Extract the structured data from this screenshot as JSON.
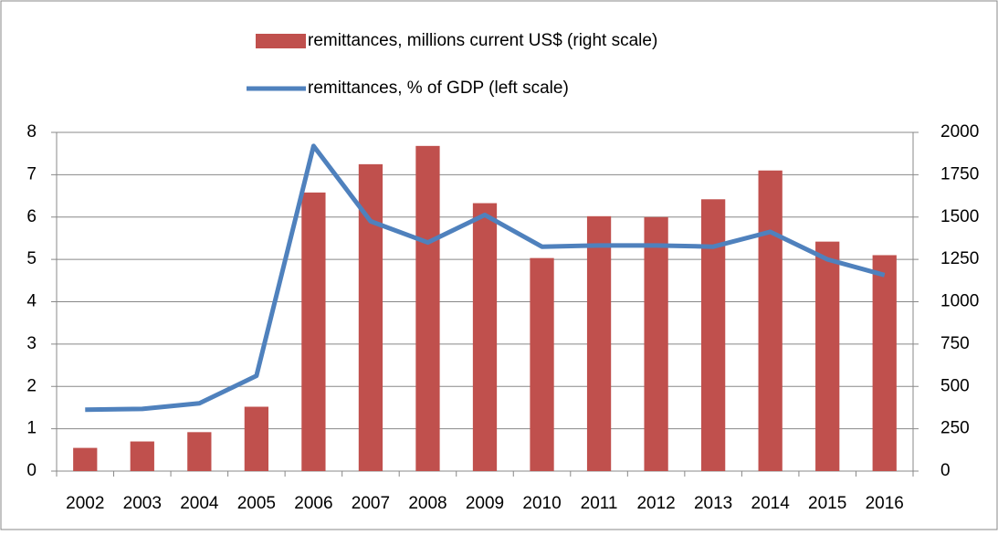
{
  "chart_data": {
    "type": "combo",
    "categories": [
      "2002",
      "2003",
      "2004",
      "2005",
      "2006",
      "2007",
      "2008",
      "2009",
      "2010",
      "2011",
      "2012",
      "2013",
      "2014",
      "2015",
      "2016"
    ],
    "series": [
      {
        "name": "remittances, millions current US$ (right scale)",
        "type": "bar",
        "axis": "y2",
        "color": "#c0504d",
        "values": [
          137,
          175,
          230,
          380,
          1645,
          1812,
          1920,
          1582,
          1258,
          1505,
          1500,
          1605,
          1775,
          1355,
          1275
        ]
      },
      {
        "name": "remittances, % of GDP (left scale)",
        "type": "line",
        "color": "#4f81bd",
        "values": [
          1.45,
          1.47,
          1.6,
          2.25,
          7.68,
          5.9,
          5.4,
          6.05,
          5.3,
          5.33,
          5.33,
          5.3,
          5.65,
          5.0,
          4.63
        ]
      }
    ],
    "ylim": [
      0,
      8
    ],
    "yticks": [
      0,
      1,
      2,
      3,
      4,
      5,
      6,
      7,
      8
    ],
    "y2lim": [
      0,
      2000
    ],
    "y2ticks": [
      0,
      250,
      500,
      750,
      1000,
      1250,
      1500,
      1750,
      2000
    ],
    "grid": true,
    "legend": "top"
  }
}
